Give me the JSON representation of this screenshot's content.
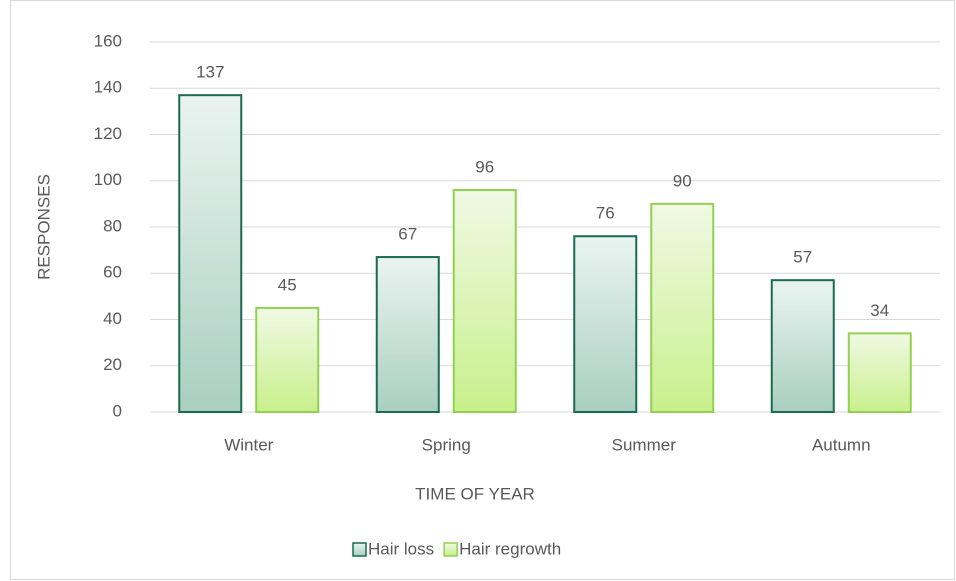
{
  "chart_data": {
    "type": "bar",
    "x_label": "TIME OF YEAR",
    "y_label": "RESPONSES",
    "categories": [
      "Winter",
      "Spring",
      "Summer",
      "Autumn"
    ],
    "series": [
      {
        "name": "Hair loss",
        "color": "#1a6b50",
        "values": [
          137,
          67,
          76,
          57
        ]
      },
      {
        "name": "Hair regrowth",
        "color": "#92d050",
        "values": [
          45,
          96,
          90,
          34
        ]
      }
    ],
    "ylim": [
      0,
      160
    ],
    "yticks": [
      0,
      20,
      40,
      60,
      80,
      100,
      120,
      140,
      160
    ],
    "grid": true,
    "legend": "bottom"
  }
}
